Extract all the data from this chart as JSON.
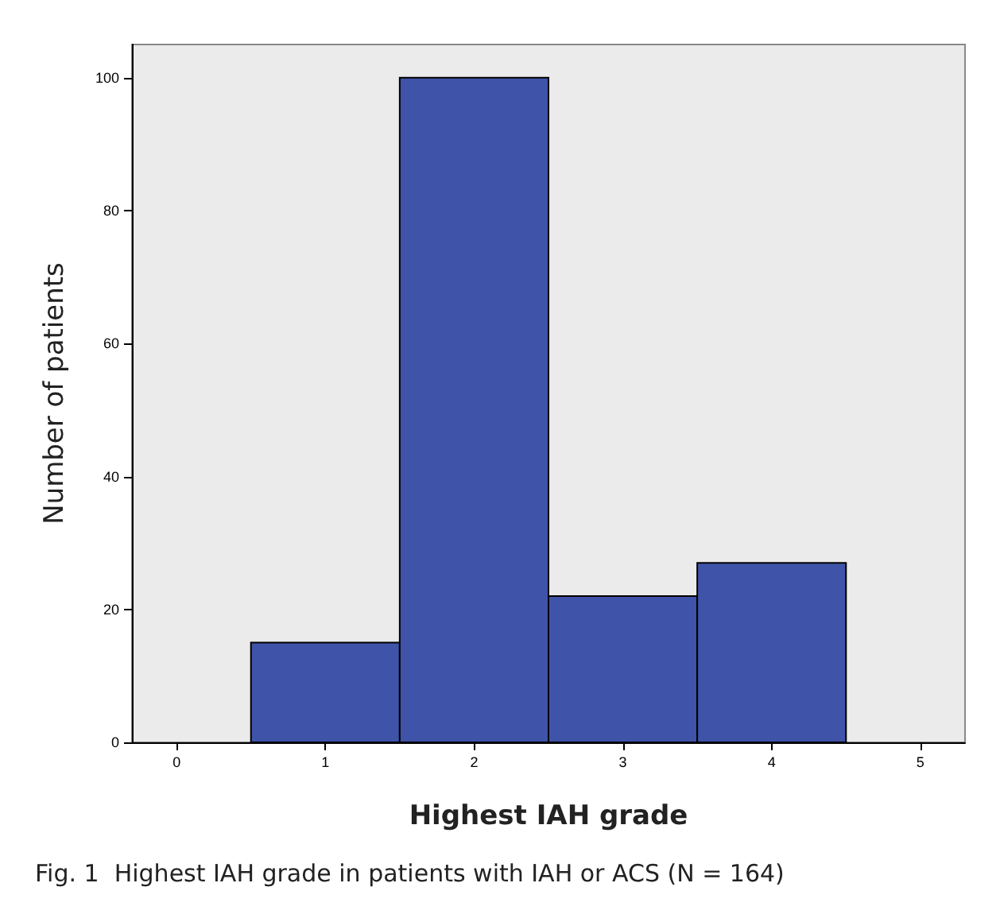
{
  "chart_data": {
    "type": "histogram",
    "xlabel": "Highest IAH grade",
    "ylabel": "Number of patients",
    "bins": [
      0.5,
      1.5,
      2.5,
      3.5,
      4.5
    ],
    "values": [
      15,
      100,
      22,
      27
    ],
    "color": "#3f54a8",
    "xlim": [
      -0.3,
      5.3
    ],
    "xticks": [
      0,
      1,
      2,
      3,
      4,
      5
    ],
    "ylim": [
      0,
      105
    ],
    "yticks": [
      0,
      20,
      40,
      60,
      80,
      100
    ],
    "grid": false,
    "annotations": [
      "Fig. 1  Highest IAH grade in patients with IAH or ACS (N = 164)"
    ]
  }
}
